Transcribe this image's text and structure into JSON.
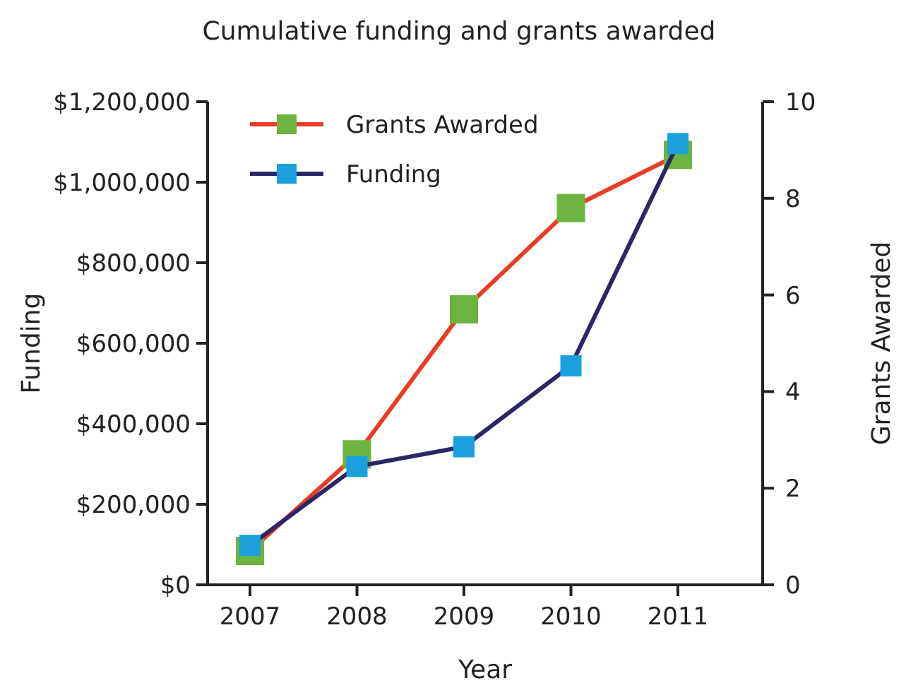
{
  "chart_data": {
    "type": "line",
    "title": "Cumulative funding and grants awarded",
    "xlabel": "Year",
    "ylabel": "Funding",
    "y2label": "Grants Awarded",
    "categories": [
      "2007",
      "2008",
      "2009",
      "2010",
      "2011"
    ],
    "series": [
      {
        "name": "Grants Awarded",
        "axis": "y2",
        "color": "#ea3b24",
        "colors": [
          "#6cb33f",
          "#6cb33f",
          "#6cb33f",
          "#6cb33f",
          "#6cb33f"
        ],
        "values": [
          0.7,
          2.7,
          5.7,
          7.8,
          8.9
        ]
      },
      {
        "name": "Funding",
        "axis": "y",
        "color": "#2b2766",
        "colors": [
          "#1aa0dc",
          "#1aa0dc",
          "#1aa0dc",
          "#1aa0dc",
          "#1aa0dc"
        ],
        "values": [
          98000,
          294000,
          343000,
          544000,
          1096000
        ]
      }
    ],
    "ylim": [
      0,
      1200000
    ],
    "yticks": [
      {
        "value": 0,
        "label": "$0"
      },
      {
        "value": 200000,
        "label": "$200,000"
      },
      {
        "value": 400000,
        "label": "$400,000"
      },
      {
        "value": 600000,
        "label": "$600,000"
      },
      {
        "value": 800000,
        "label": "$800,000"
      },
      {
        "value": 1000000,
        "label": "$1,000,000"
      },
      {
        "value": 1200000,
        "label": "$1,200,000"
      }
    ],
    "y2lim": [
      0,
      10
    ],
    "y2ticks": [
      0,
      2,
      4,
      6,
      8,
      10
    ],
    "marker": "square",
    "line_style": "solid",
    "legend": "top left",
    "grid": false
  }
}
